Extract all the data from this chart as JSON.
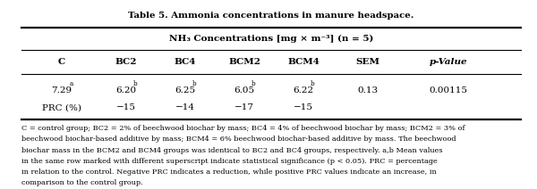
{
  "title": "Table 5. Ammonia concentrations in manure headspace.",
  "col_header": "NH₃ Concentrations [mg × m⁻³] (n = 5)",
  "columns": [
    "C",
    "BC2",
    "BC4",
    "BCM2",
    "BCM4",
    "SEM",
    "p-Value"
  ],
  "row1": [
    "7.29 a",
    "6.20 b",
    "6.25 b",
    "6.05 b",
    "6.22 b",
    "0.13",
    "0.00115"
  ],
  "row1_sup": [
    "a",
    "b",
    "b",
    "b",
    "b",
    "",
    ""
  ],
  "row2_label": "PRC (%)",
  "row2": [
    "−15",
    "−14",
    "−17",
    "−15",
    "",
    ""
  ],
  "footnote_lines": [
    "C = control group; BC2 = 2% of beechwood biochar by mass; BC4 = 4% of beechwood biochar by mass; BCM2 = 3% of",
    "beechwood biochar-based additive by mass; BCM4 = 6% beechwood biochar-based additive by mass. The beechwood",
    "biochar mass in the BCM2 and BCM4 groups was identical to BC2 and BC4 groups, respectively. a,b Mean values",
    "in the same row marked with different superscript indicate statistical significance (p < 0.05). PRC = percentage",
    "in relation to the control. Negative PRC indicates a reduction, while positive PRC values indicate an increase, in",
    "comparison to the control group."
  ],
  "background": "#ffffff",
  "text_color": "#000000"
}
